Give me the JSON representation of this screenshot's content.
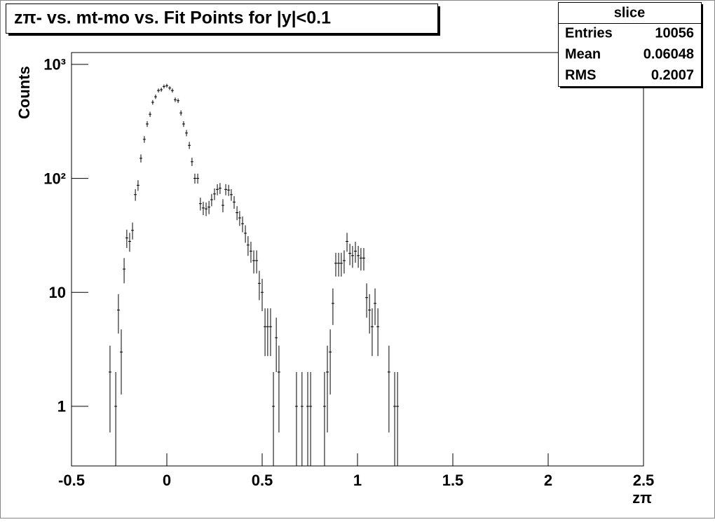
{
  "chart_data": {
    "type": "errorbar",
    "title": "zπ- vs. mt-mo vs. Fit Points for |y|<0.1",
    "xlabel": "zπ",
    "ylabel": "Counts",
    "log_y": true,
    "color": "#000000",
    "xlim": [
      -0.5,
      2.5
    ],
    "xticks": [
      -0.5,
      0,
      0.5,
      1,
      1.5,
      2,
      2.5
    ],
    "ylim": [
      0.3,
      1270
    ],
    "yticks": [
      1,
      10,
      {
        "value": 100,
        "label": "10²"
      },
      {
        "value": 1000,
        "label": "10³"
      }
    ],
    "x": [
      -0.298,
      -0.268,
      -0.254,
      -0.239,
      -0.224,
      -0.21,
      -0.195,
      -0.18,
      -0.165,
      -0.151,
      -0.136,
      -0.118,
      -0.103,
      -0.088,
      -0.074,
      -0.059,
      -0.044,
      -0.029,
      -0.015,
      0.0,
      0.015,
      0.029,
      0.044,
      0.059,
      0.074,
      0.088,
      0.103,
      0.118,
      0.132,
      0.147,
      0.162,
      0.176,
      0.191,
      0.206,
      0.221,
      0.235,
      0.25,
      0.265,
      0.279,
      0.294,
      0.309,
      0.324,
      0.338,
      0.353,
      0.368,
      0.382,
      0.397,
      0.412,
      0.426,
      0.441,
      0.456,
      0.471,
      0.485,
      0.5,
      0.515,
      0.529,
      0.544,
      0.559,
      0.574,
      0.588,
      0.68,
      0.709,
      0.739,
      0.754,
      0.827,
      0.842,
      0.857,
      0.871,
      0.886,
      0.901,
      0.915,
      0.93,
      0.945,
      0.96,
      0.974,
      0.989,
      1.004,
      1.018,
      1.033,
      1.048,
      1.063,
      1.077,
      1.092,
      1.107,
      1.165,
      1.195,
      1.21
    ],
    "values": [
      2,
      1,
      7,
      3,
      16,
      30,
      28,
      35,
      72,
      87,
      150,
      220,
      300,
      365,
      465,
      520,
      590,
      600,
      640,
      650,
      620,
      590,
      490,
      480,
      375,
      300,
      250,
      195,
      140,
      100,
      100,
      60,
      55,
      54,
      56,
      65,
      73,
      80,
      82,
      58,
      80,
      79,
      72,
      62,
      50,
      45,
      40,
      33,
      26,
      23,
      19,
      19,
      12,
      10,
      5,
      5,
      5,
      1,
      4,
      2,
      1,
      1,
      1,
      1,
      1,
      2,
      3,
      8,
      18,
      18,
      18,
      19,
      28,
      22,
      21,
      23,
      21,
      20,
      20,
      9,
      7,
      5,
      8,
      5,
      2,
      1,
      1
    ],
    "errors": [
      1.41,
      1,
      2.65,
      1.73,
      4,
      5.48,
      5.29,
      5.92,
      8.49,
      9.33,
      12.2,
      14.8,
      17.3,
      19.1,
      21.6,
      22.8,
      24.3,
      24.5,
      25.3,
      25.5,
      24.9,
      24.3,
      22.1,
      21.9,
      19.4,
      17.3,
      15.8,
      14,
      11.8,
      10,
      10,
      7.75,
      7.42,
      7.35,
      7.48,
      8.06,
      8.54,
      8.94,
      9.06,
      7.62,
      8.94,
      8.89,
      8.49,
      7.87,
      7.07,
      6.71,
      6.32,
      5.74,
      5.1,
      4.8,
      4.36,
      4.36,
      3.46,
      3.16,
      2.24,
      2.24,
      2.24,
      1,
      2,
      1.41,
      1,
      1,
      1,
      1,
      1,
      1.41,
      1.73,
      2.83,
      4.24,
      4.24,
      4.24,
      4.36,
      5.29,
      4.69,
      4.58,
      4.8,
      4.58,
      4.47,
      4.47,
      3,
      2.65,
      2.24,
      2.83,
      2.24,
      1.41,
      1,
      1
    ],
    "stats": {
      "name": "slice",
      "rows": [
        [
          "Entries",
          10056
        ],
        [
          "Mean",
          0.06048
        ],
        [
          "RMS",
          0.2007
        ]
      ]
    }
  }
}
